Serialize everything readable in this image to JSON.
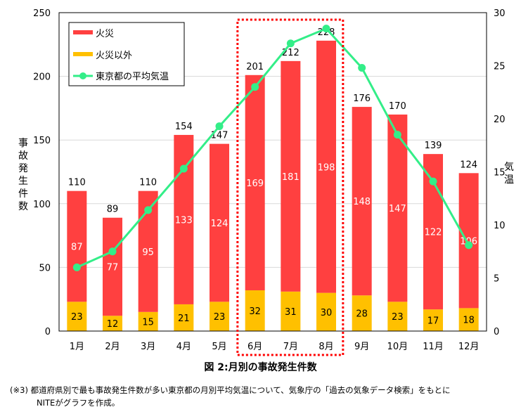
{
  "chart_data": {
    "type": "bar",
    "stacked": true,
    "categories": [
      "1月",
      "2月",
      "3月",
      "4月",
      "5月",
      "6月",
      "7月",
      "8月",
      "9月",
      "10月",
      "11月",
      "12月"
    ],
    "series": [
      {
        "name": "火災以外",
        "values": [
          23,
          12,
          15,
          21,
          23,
          32,
          31,
          30,
          28,
          23,
          17,
          18
        ],
        "color": "#FFC000"
      },
      {
        "name": "火災",
        "values": [
          87,
          77,
          95,
          133,
          124,
          169,
          181,
          198,
          148,
          147,
          122,
          106
        ],
        "color": "#FF4040"
      }
    ],
    "totals": [
      110,
      89,
      110,
      154,
      147,
      201,
      212,
      228,
      176,
      170,
      139,
      124
    ],
    "line_series": {
      "name": "東京都の平均気温",
      "axis": "right",
      "values": [
        6.0,
        7.5,
        11.4,
        15.3,
        19.3,
        23.0,
        27.1,
        28.5,
        24.8,
        18.5,
        14.1,
        8.1
      ],
      "color": "#33EE88"
    },
    "ylabel": "事故発生件数",
    "ylabel_right": "気温",
    "ylim": [
      0,
      250
    ],
    "yticks": [
      0,
      50,
      100,
      150,
      200,
      250
    ],
    "ylim_right": [
      0,
      30
    ],
    "yticks_right": [
      0,
      5,
      10,
      15,
      20,
      25,
      30
    ],
    "grid": true,
    "legend_placement": "top-left",
    "highlight": {
      "categories": [
        "6月",
        "7月",
        "8月"
      ],
      "style": "red dotted box"
    },
    "title": "図 2:月別の事故発生件数"
  },
  "note": {
    "mark": "(※3)",
    "line1": "都道府県別で最も事故発生件数が多い東京都の月別平均気温について、気象庁の「過去の気象データ検索」をもとに",
    "line2": "NITEがグラフを作成。"
  }
}
